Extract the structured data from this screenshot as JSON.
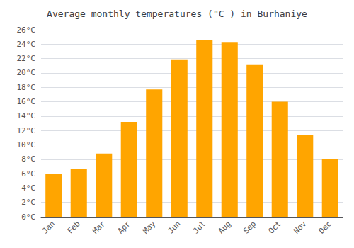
{
  "chart_data": {
    "type": "bar",
    "title": "Average monthly temperatures (°C ) in Burhaniye",
    "categories": [
      "Jan",
      "Feb",
      "Mar",
      "Apr",
      "May",
      "Jun",
      "Jul",
      "Aug",
      "Sep",
      "Oct",
      "Nov",
      "Dec"
    ],
    "values": [
      6.0,
      6.7,
      8.8,
      13.2,
      17.7,
      21.9,
      24.6,
      24.3,
      21.1,
      16.0,
      11.4,
      8.0
    ],
    "color": "#FFA500",
    "ylim": [
      0,
      26
    ],
    "yticks": [
      {
        "value": 0,
        "label": "0°C"
      },
      {
        "value": 2,
        "label": "2°C"
      },
      {
        "value": 4,
        "label": "4°C"
      },
      {
        "value": 6,
        "label": "6°C"
      },
      {
        "value": 8,
        "label": "8°C"
      },
      {
        "value": 10,
        "label": "10°C"
      },
      {
        "value": 12,
        "label": "12°C"
      },
      {
        "value": 14,
        "label": "14°C"
      },
      {
        "value": 16,
        "label": "16°C"
      },
      {
        "value": 18,
        "label": "18°C"
      },
      {
        "value": 20,
        "label": "20°C"
      },
      {
        "value": 22,
        "label": "22°C"
      },
      {
        "value": 24,
        "label": "24°C"
      },
      {
        "value": 26,
        "label": "26°C"
      }
    ],
    "grid": true
  }
}
